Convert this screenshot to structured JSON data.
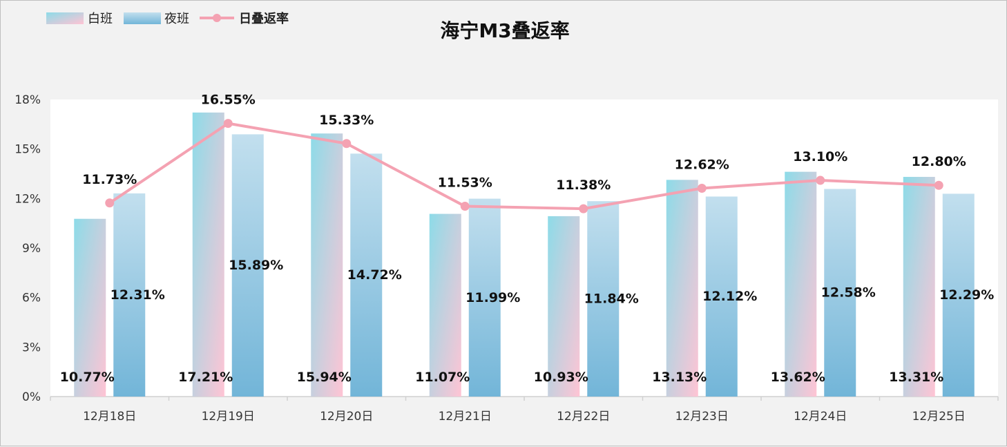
{
  "chart_data": {
    "type": "bar",
    "title": "海宁M3叠返率",
    "xlabel": "",
    "ylabel": "",
    "ylim": [
      0,
      18
    ],
    "yticks": [
      "0%",
      "3%",
      "6%",
      "9%",
      "12%",
      "15%",
      "18%"
    ],
    "ytick_values": [
      0,
      3,
      6,
      9,
      12,
      15,
      18
    ],
    "categories": [
      "12月18日",
      "12月19日",
      "12月20日",
      "12月21日",
      "12月22日",
      "12月23日",
      "12月24日",
      "12月25日"
    ],
    "series": [
      {
        "name": "白班",
        "kind": "bar",
        "values": [
          10.77,
          17.21,
          15.94,
          11.07,
          10.93,
          13.13,
          13.62,
          13.31
        ],
        "labels": [
          "10.77%",
          "17.21%",
          "15.94%",
          "11.07%",
          "10.93%",
          "13.13%",
          "13.62%",
          "13.31%"
        ],
        "color_top": "#8ddbe8",
        "color_bottom": "#ffc4d4"
      },
      {
        "name": "夜班",
        "kind": "bar",
        "values": [
          12.31,
          15.89,
          14.72,
          11.99,
          11.84,
          12.12,
          12.58,
          12.29
        ],
        "labels": [
          "12.31%",
          "15.89%",
          "14.72%",
          "11.99%",
          "11.84%",
          "12.12%",
          "12.58%",
          "12.29%"
        ],
        "color_top": "#c2dfee",
        "color_bottom": "#72b5d8"
      },
      {
        "name": "日叠返率",
        "kind": "line",
        "values": [
          11.73,
          16.55,
          15.33,
          11.53,
          11.38,
          12.62,
          13.1,
          12.8
        ],
        "labels": [
          "11.73%",
          "16.55%",
          "15.33%",
          "11.53%",
          "11.38%",
          "12.62%",
          "13.10%",
          "12.80%"
        ],
        "color": "#f4a2b2"
      }
    ],
    "legend_position": "top-left",
    "grid": false
  }
}
